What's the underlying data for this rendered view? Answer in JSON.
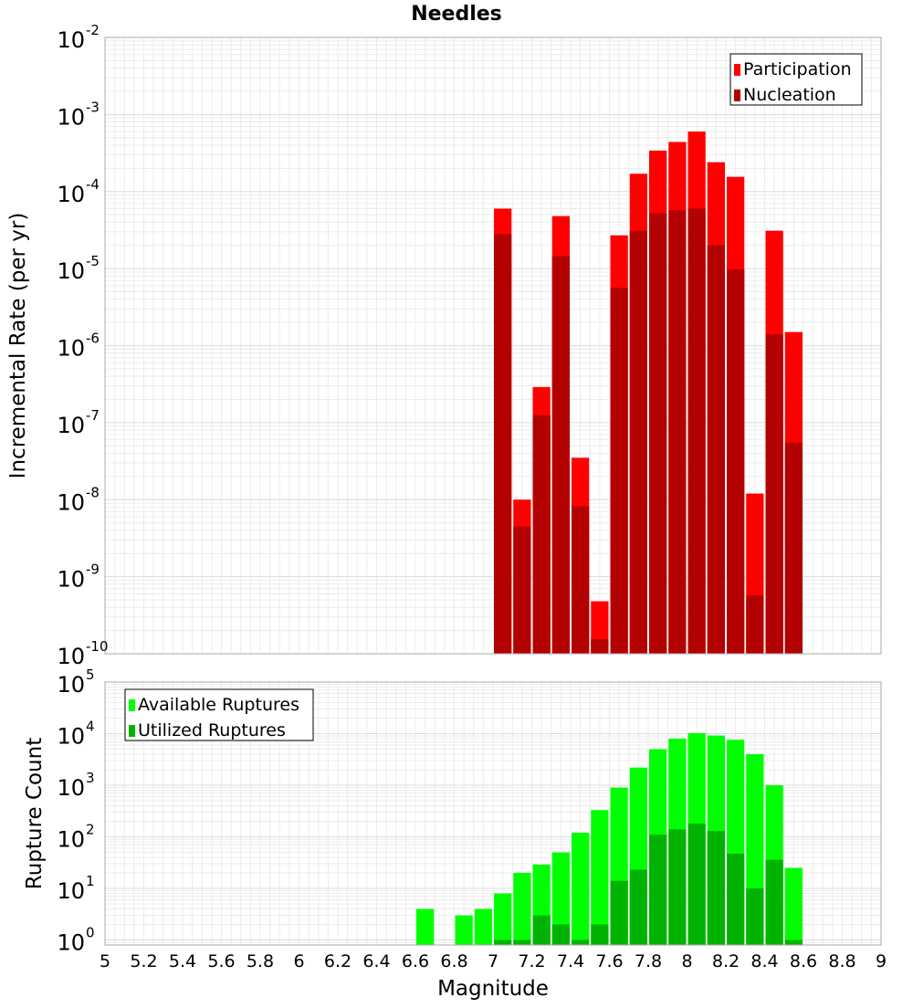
{
  "chart_data": [
    {
      "type": "bar",
      "title": "Needles",
      "xlabel": "",
      "ylabel": "Incremental Rate (per yr)",
      "yscale": "log",
      "ylim": [
        1e-10,
        0.01
      ],
      "xlim": [
        5,
        9
      ],
      "y_ticks": [
        {
          "base": "10",
          "exp": "-10",
          "v": 1e-10
        },
        {
          "base": "10",
          "exp": "-9",
          "v": 1e-09
        },
        {
          "base": "10",
          "exp": "-8",
          "v": 1e-08
        },
        {
          "base": "10",
          "exp": "-7",
          "v": 1e-07
        },
        {
          "base": "10",
          "exp": "-6",
          "v": 1e-06
        },
        {
          "base": "10",
          "exp": "-5",
          "v": 1e-05
        },
        {
          "base": "10",
          "exp": "-4",
          "v": 0.0001
        },
        {
          "base": "10",
          "exp": "-3",
          "v": 0.001
        },
        {
          "base": "10",
          "exp": "-2",
          "v": 0.01
        }
      ],
      "grid": true,
      "legend": "top-right",
      "bin_width": 0.1,
      "series": [
        {
          "name": "Participation",
          "color": "#ff0000",
          "x": [
            7.05,
            7.15,
            7.25,
            7.35,
            7.45,
            7.55,
            7.65,
            7.75,
            7.85,
            7.95,
            8.05,
            8.15,
            8.25,
            8.35,
            8.45,
            8.55
          ],
          "values": [
            6e-05,
            1e-08,
            2.9e-07,
            4.8e-05,
            3.5e-08,
            4.8e-10,
            2.7e-05,
            0.00017,
            0.00034,
            0.00044,
            0.0006,
            0.00024,
            0.000155,
            1.2e-08,
            3.1e-05,
            1.5e-06
          ]
        },
        {
          "name": "Nucleation",
          "color": "#b30000",
          "x": [
            7.05,
            7.15,
            7.25,
            7.35,
            7.45,
            7.55,
            7.65,
            7.75,
            7.85,
            7.95,
            8.05,
            8.15,
            8.25,
            8.35,
            8.45,
            8.55
          ],
          "values": [
            2.8e-05,
            4.5e-09,
            1.25e-07,
            1.45e-05,
            8.2e-09,
            1.55e-10,
            5.6e-06,
            3.1e-05,
            5.2e-05,
            5.7e-05,
            6e-05,
            2e-05,
            9.7e-06,
            5.7e-10,
            1.4e-06,
            5.5e-08
          ]
        }
      ]
    },
    {
      "type": "bar",
      "title": "",
      "xlabel": "Magnitude",
      "ylabel": "Rupture Count",
      "yscale": "log",
      "ylim": [
        0.8,
        100000
      ],
      "xlim": [
        5,
        9
      ],
      "x_ticks": [
        "5",
        "5.2",
        "5.4",
        "5.6",
        "5.8",
        "6",
        "6.2",
        "6.4",
        "6.6",
        "6.8",
        "7",
        "7.2",
        "7.4",
        "7.6",
        "7.8",
        "8",
        "8.2",
        "8.4",
        "8.6",
        "8.8",
        "9"
      ],
      "y_ticks": [
        {
          "base": "10",
          "exp": "0",
          "v": 1
        },
        {
          "base": "10",
          "exp": "1",
          "v": 10
        },
        {
          "base": "10",
          "exp": "2",
          "v": 100
        },
        {
          "base": "10",
          "exp": "3",
          "v": 1000
        },
        {
          "base": "10",
          "exp": "4",
          "v": 10000
        },
        {
          "base": "10",
          "exp": "5",
          "v": 100000
        }
      ],
      "grid": true,
      "legend": "top-left",
      "bin_width": 0.1,
      "series": [
        {
          "name": "Available Ruptures",
          "color": "#00ff00",
          "x": [
            6.65,
            6.85,
            6.95,
            7.05,
            7.15,
            7.25,
            7.35,
            7.45,
            7.55,
            7.65,
            7.75,
            7.85,
            7.95,
            8.05,
            8.15,
            8.25,
            8.35,
            8.45,
            8.55
          ],
          "values": [
            4,
            3,
            4,
            8,
            20,
            29,
            50,
            120,
            330,
            900,
            2200,
            5000,
            8000,
            10200,
            9200,
            7600,
            4000,
            1000,
            25
          ]
        },
        {
          "name": "Utilized Ruptures",
          "color": "#00b300",
          "x": [
            6.65,
            6.85,
            6.95,
            7.05,
            7.15,
            7.25,
            7.35,
            7.45,
            7.55,
            7.65,
            7.75,
            7.85,
            7.95,
            8.05,
            8.15,
            8.25,
            8.35,
            8.45,
            8.55
          ],
          "values": [
            0,
            0,
            0,
            1,
            1,
            3,
            2,
            1,
            2,
            14,
            23,
            110,
            140,
            180,
            130,
            47,
            10,
            36,
            1
          ]
        }
      ]
    }
  ]
}
